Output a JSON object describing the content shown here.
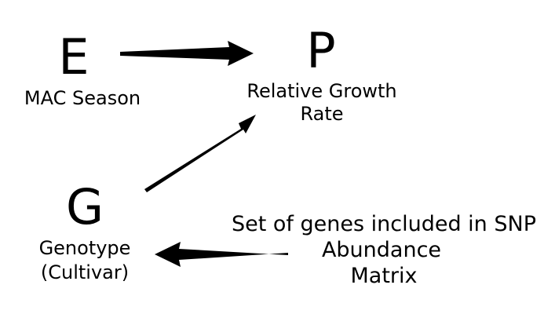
{
  "nodes": {
    "environment": {
      "letter": "E",
      "label_lines": [
        "MAC Season"
      ]
    },
    "phenotype": {
      "letter": "P",
      "label_lines": [
        "Relative Growth",
        "Rate"
      ]
    },
    "genotype": {
      "letter": "G",
      "label_lines": [
        "Genotype",
        "(Cultivar)"
      ]
    },
    "snp_matrix": {
      "label_lines": [
        "Set of genes included in SNP",
        "Abundance",
        "Matrix"
      ]
    }
  },
  "edges": [
    {
      "from": "environment",
      "to": "phenotype"
    },
    {
      "from": "genotype",
      "to": "phenotype"
    },
    {
      "from": "snp_matrix",
      "to": "genotype"
    }
  ],
  "colors": {
    "background": "#ffffff",
    "ink": "#000000"
  }
}
